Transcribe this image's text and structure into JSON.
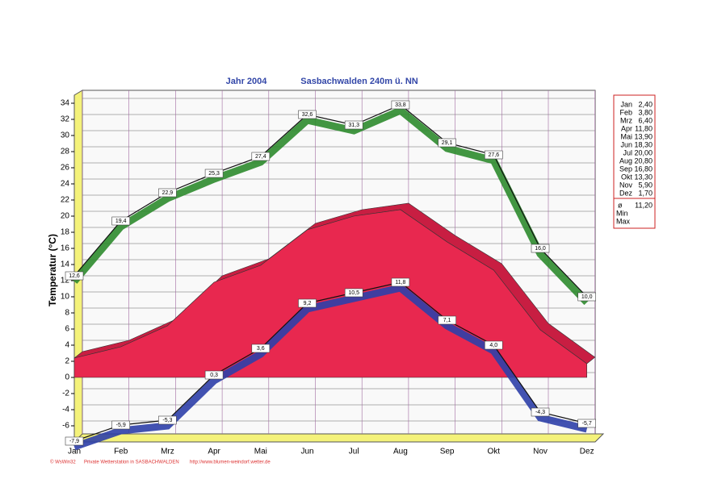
{
  "chart_data": {
    "type": "line",
    "title": "Jahr  2004",
    "subtitle": "Sasbachwalden  240m ü. NN",
    "ylabel": "Temperatur (°C)",
    "categories": [
      "Jan",
      "Feb",
      "Mrz",
      "Apr",
      "Mai",
      "Jun",
      "Jul",
      "Aug",
      "Sep",
      "Okt",
      "Nov",
      "Dez"
    ],
    "ylim": [
      -8,
      35
    ],
    "yticks": [
      -6,
      -4,
      -2,
      0,
      2,
      4,
      6,
      8,
      10,
      12,
      14,
      16,
      18,
      20,
      22,
      24,
      26,
      28,
      30,
      32,
      34
    ],
    "grid": true,
    "series": [
      {
        "name": "Max",
        "type": "line",
        "color": "#2e8b2e",
        "values": [
          12.6,
          19.4,
          22.9,
          25.3,
          27.4,
          32.6,
          31.3,
          33.8,
          29.1,
          27.6,
          16.0,
          10.0
        ],
        "value_labels": [
          "12,6",
          "19,4",
          "22,9",
          "25,3",
          "27,4",
          "32,6",
          "31,3",
          "33,8",
          "29,1",
          "27,6",
          "16,0",
          "10,0"
        ]
      },
      {
        "name": "Min",
        "type": "line",
        "color": "#2e3fa8",
        "values": [
          -7.9,
          -5.9,
          -5.3,
          0.3,
          3.6,
          9.2,
          10.5,
          11.8,
          7.1,
          4.0,
          -4.3,
          -5.7
        ],
        "value_labels": [
          "-7,9",
          "-5,9",
          "-5,3",
          "0,3",
          "3,6",
          "9,2",
          "10,5",
          "11,8",
          "7,1",
          "4,0",
          "-4,3",
          "-5,7"
        ]
      },
      {
        "name": "ø",
        "type": "area",
        "color": "#e8284f",
        "values": [
          2.4,
          3.8,
          6.4,
          11.8,
          13.9,
          18.3,
          20.0,
          20.8,
          16.8,
          13.3,
          5.9,
          1.7
        ],
        "value_labels": [
          "2,40",
          "3,80",
          "6,40",
          "11,80",
          "13,90",
          "18,30",
          "20,00",
          "20,80",
          "16,80",
          "13,30",
          "5,90",
          "1,70"
        ],
        "mean": 11.2,
        "mean_label": "11,20"
      }
    ],
    "footer": [
      "© WsWin32",
      "Private  Wetterstation  in  SASBACHWALDEN",
      "http://www.blumen-weindorf.wetter.de"
    ]
  }
}
